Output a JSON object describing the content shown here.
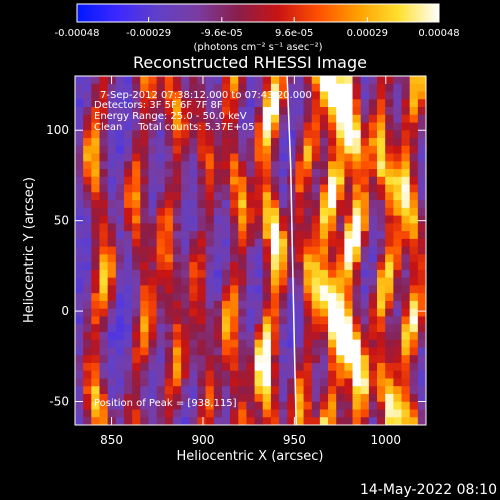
{
  "chart_data": {
    "type": "heatmap",
    "title": "Reconstructed RHESSI Image",
    "xlabel": "Heliocentric X (arcsec)",
    "ylabel": "Heliocentric Y (arcsec)",
    "xlim": [
      830,
      1022
    ],
    "ylim": [
      -63,
      130
    ],
    "x_ticks": [
      850,
      900,
      950,
      1000
    ],
    "y_ticks": [
      -50,
      0,
      50,
      100
    ],
    "colorbar": {
      "ticks": [
        "-0.00048",
        "-0.00029",
        "-9.6e-05",
        "9.6e-05",
        "0.00029",
        "0.00048"
      ],
      "tick_values": [
        -0.00048,
        -0.00029,
        -9.6e-05,
        9.6e-05,
        0.00029,
        0.00048
      ],
      "range": [
        -0.00048,
        0.00048
      ],
      "label": "(photons cm⁻² s⁻¹ asec⁻²)",
      "colormap": "blue-purple-red-yellow-white"
    },
    "info_lines": [
      "7-Sep-2012 07:38:12.000 to 07:43:20.000",
      "Detectors: 3F 5F 6F 7F 8F",
      "Energy Range: 25.0 - 50.0 keV",
      "Clean     Total counts: 5.37E+05"
    ],
    "peak_text": "Position of Peak = [938,115]",
    "intensity_bands": [
      {
        "x": 843,
        "amp": 0.65
      },
      {
        "x": 866,
        "amp": 0.55
      },
      {
        "x": 883,
        "amp": 0.55
      },
      {
        "x": 900,
        "amp": 0.45
      },
      {
        "x": 918,
        "amp": 0.6
      },
      {
        "x": 937,
        "amp": 0.9
      },
      {
        "x": 957,
        "amp": 0.6
      },
      {
        "x": 970,
        "amp": 0.85
      },
      {
        "x": 982,
        "amp": 0.95
      },
      {
        "x": 1000,
        "amp": 0.7
      },
      {
        "x": 1014,
        "amp": 0.75
      }
    ],
    "limb_curve": [
      [
        946,
        130
      ],
      [
        948,
        80
      ],
      [
        949,
        30
      ],
      [
        950,
        -20
      ],
      [
        951,
        -63
      ]
    ]
  },
  "footer_date": "14-May-2022 08:10",
  "colors": {
    "background": "#000000",
    "foreground": "#ffffff",
    "colormap_stops": [
      "#0018ff",
      "#3c28ff",
      "#6040c8",
      "#7a3ca0",
      "#8a1e4a",
      "#c81414",
      "#ff5000",
      "#ffa000",
      "#ffe030",
      "#ffffff"
    ]
  }
}
